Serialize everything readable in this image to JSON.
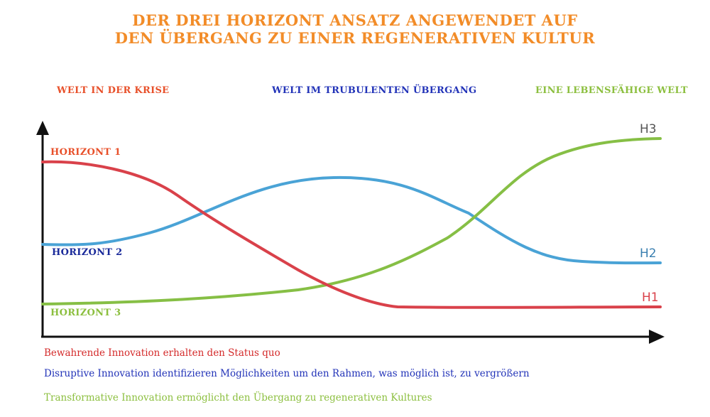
{
  "title": {
    "line1": "DER DREI HORIZONT ANSATZ ANGEWENDET AUF",
    "line2": "DEN ÜBERGANG ZU EINER REGENERATIVEN KULTUR"
  },
  "phases": [
    {
      "label": "WELT IN DER KRISE",
      "color": "#e8502a"
    },
    {
      "label": "WELT IM TRUBULENTEN ÜBERGANG",
      "color": "#2233b8"
    },
    {
      "label": "EINE LEBENSFÄHIGE WELT",
      "color": "#8cbf3f"
    }
  ],
  "horizons": [
    {
      "left_label": "HORIZONT 1",
      "right_label": "H1",
      "color": "#d9414a",
      "label_color": "#e8502a"
    },
    {
      "left_label": "HORIZONT 2",
      "right_label": "H2",
      "color": "#4aa3d6",
      "label_color": "#1a2a9a"
    },
    {
      "left_label": "HORIZONT 3",
      "right_label": "H3",
      "color": "#86bf45",
      "label_color": "#8cbf3f"
    }
  ],
  "legend": [
    {
      "text": "Bewahrende Innovation erhalten den Status quo",
      "color": "#d42a2a"
    },
    {
      "text": "Disruptive Innovation identifizieren Möglichkeiten um den Rahmen, was möglich ist, zu vergrößern",
      "color": "#2233b8"
    },
    {
      "text": "Transformative Innovation ermöglicht den Übergang zu regenerativen Kultures",
      "color": "#8cbf3f"
    }
  ]
}
